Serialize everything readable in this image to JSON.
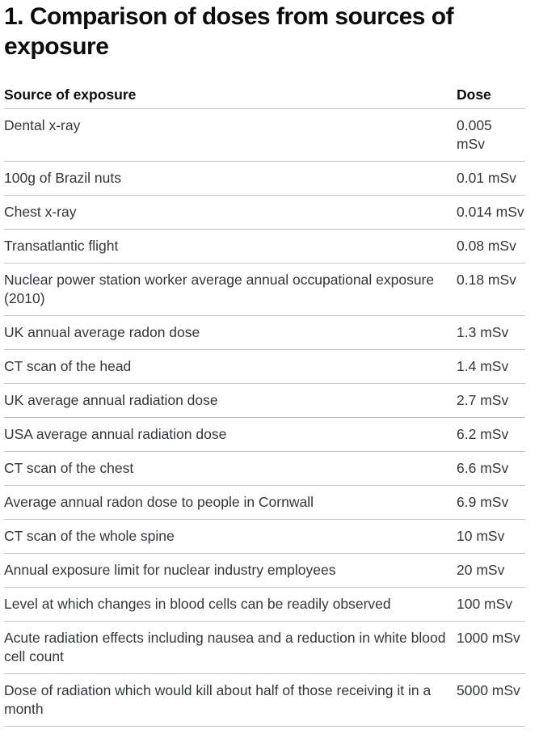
{
  "page": {
    "title": "1. Comparison of doses from sources of exposure"
  },
  "table": {
    "columns": [
      {
        "label": "Source of exposure"
      },
      {
        "label": "Dose"
      }
    ],
    "unit": "mSv",
    "rows": [
      {
        "source": "Dental x-ray",
        "dose": "0.005\nmSv"
      },
      {
        "source": "100g of Brazil nuts",
        "dose": "0.01 mSv"
      },
      {
        "source": "Chest x-ray",
        "dose": "0.014 mSv"
      },
      {
        "source": "Transatlantic flight",
        "dose": "0.08 mSv"
      },
      {
        "source": "Nuclear power station worker average annual occupational exposure (2010)",
        "dose": "0.18 mSv"
      },
      {
        "source": "UK annual average radon dose",
        "dose": "1.3 mSv"
      },
      {
        "source": "CT scan of the head",
        "dose": "1.4 mSv"
      },
      {
        "source": "UK average annual radiation dose",
        "dose": "2.7 mSv"
      },
      {
        "source": "USA average annual radiation dose",
        "dose": "6.2 mSv"
      },
      {
        "source": "CT scan of the chest",
        "dose": "6.6 mSv"
      },
      {
        "source": "Average annual radon dose to people in Cornwall",
        "dose": "6.9 mSv"
      },
      {
        "source": "CT scan of the whole spine",
        "dose": "10 mSv"
      },
      {
        "source": "Annual exposure limit for nuclear industry employees",
        "dose": "20 mSv"
      },
      {
        "source": "Level at which changes in blood cells can be readily observed",
        "dose": "100 mSv"
      },
      {
        "source": "Acute radiation effects including nausea and a reduction in white blood cell count",
        "dose": "1000 mSv"
      },
      {
        "source": "Dose of radiation which would kill about half of those receiving it in a month",
        "dose": "5000 mSv"
      }
    ]
  },
  "colors": {
    "heading_text": "#0b0c0c",
    "body_text": "#32373b",
    "table_border": "#c0c2c4",
    "background": "#ffffff"
  }
}
